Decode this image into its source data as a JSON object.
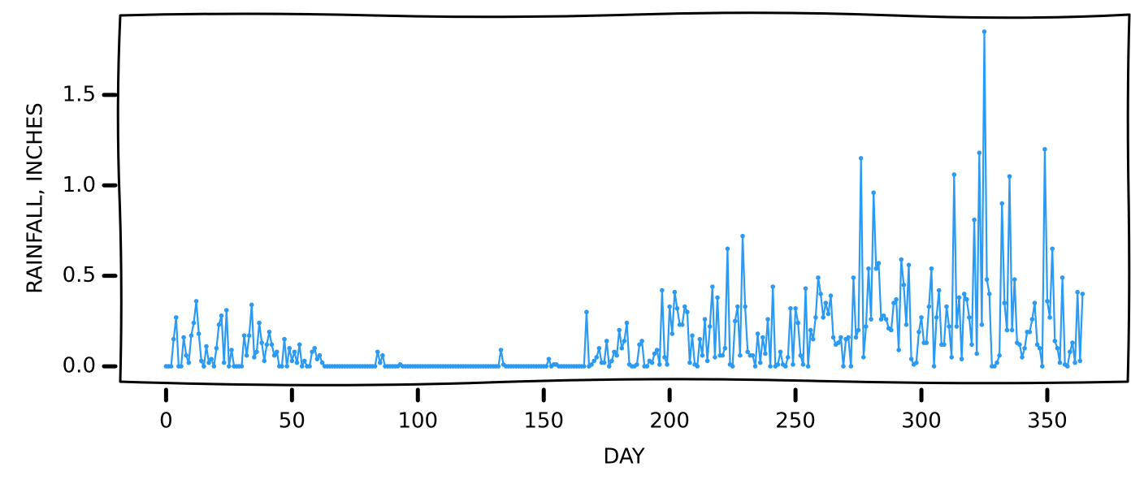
{
  "chart_data": {
    "type": "line",
    "xlabel": "DAY",
    "ylabel": "RAINFALL, INCHES",
    "color": "#2b9af3",
    "xlim": [
      -18.2,
      382.6
    ],
    "ylim": [
      -0.085,
      1.944
    ],
    "xticks": [
      0,
      50,
      100,
      150,
      200,
      250,
      300,
      350
    ],
    "yticks": [
      {
        "value": 0,
        "label": "0.0"
      },
      0.5,
      {
        "value": 1,
        "label": "1.0"
      },
      1.5
    ],
    "x": [
      0,
      1,
      2,
      3,
      4,
      5,
      6,
      7,
      8,
      9,
      10,
      11,
      12,
      13,
      14,
      15,
      16,
      17,
      18,
      19,
      20,
      21,
      22,
      23,
      24,
      25,
      26,
      27,
      28,
      29,
      30,
      31,
      32,
      33,
      34,
      35,
      36,
      37,
      38,
      39,
      40,
      41,
      42,
      43,
      44,
      45,
      46,
      47,
      48,
      49,
      50,
      51,
      52,
      53,
      54,
      55,
      56,
      57,
      58,
      59,
      60,
      61,
      62,
      63,
      64,
      65,
      66,
      67,
      68,
      69,
      70,
      71,
      72,
      73,
      74,
      75,
      76,
      77,
      78,
      79,
      80,
      81,
      82,
      83,
      84,
      85,
      86,
      87,
      88,
      89,
      90,
      91,
      92,
      93,
      94,
      95,
      96,
      97,
      98,
      99,
      100,
      101,
      102,
      103,
      104,
      105,
      106,
      107,
      108,
      109,
      110,
      111,
      112,
      113,
      114,
      115,
      116,
      117,
      118,
      119,
      120,
      121,
      122,
      123,
      124,
      125,
      126,
      127,
      128,
      129,
      130,
      131,
      132,
      133,
      134,
      135,
      136,
      137,
      138,
      139,
      140,
      141,
      142,
      143,
      144,
      145,
      146,
      147,
      148,
      149,
      150,
      151,
      152,
      153,
      154,
      155,
      156,
      157,
      158,
      159,
      160,
      161,
      162,
      163,
      164,
      165,
      166,
      167,
      168,
      169,
      170,
      171,
      172,
      173,
      174,
      175,
      176,
      177,
      178,
      179,
      180,
      181,
      182,
      183,
      184,
      185,
      186,
      187,
      188,
      189,
      190,
      191,
      192,
      193,
      194,
      195,
      196,
      197,
      198,
      199,
      200,
      201,
      202,
      203,
      204,
      205,
      206,
      207,
      208,
      209,
      210,
      211,
      212,
      213,
      214,
      215,
      216,
      217,
      218,
      219,
      220,
      221,
      222,
      223,
      224,
      225,
      226,
      227,
      228,
      229,
      230,
      231,
      232,
      233,
      234,
      235,
      236,
      237,
      238,
      239,
      240,
      241,
      242,
      243,
      244,
      245,
      246,
      247,
      248,
      249,
      250,
      251,
      252,
      253,
      254,
      255,
      256,
      257,
      258,
      259,
      260,
      261,
      262,
      263,
      264,
      265,
      266,
      267,
      268,
      269,
      270,
      271,
      272,
      273,
      274,
      275,
      276,
      277,
      278,
      279,
      280,
      281,
      282,
      283,
      284,
      285,
      286,
      287,
      288,
      289,
      290,
      291,
      292,
      293,
      294,
      295,
      296,
      297,
      298,
      299,
      300,
      301,
      302,
      303,
      304,
      305,
      306,
      307,
      308,
      309,
      310,
      311,
      312,
      313,
      314,
      315,
      316,
      317,
      318,
      319,
      320,
      321,
      322,
      323,
      324,
      325,
      326,
      327,
      328,
      329,
      330,
      331,
      332,
      333,
      334,
      335,
      336,
      337,
      338,
      339,
      340,
      341,
      342,
      343,
      344,
      345,
      346,
      347,
      348,
      349,
      350,
      351,
      352,
      353,
      354,
      355,
      356,
      357,
      358,
      359,
      360,
      361,
      362,
      363,
      364
    ],
    "values": [
      0,
      0,
      0,
      0.15,
      0.27,
      0,
      0,
      0.16,
      0.06,
      0.02,
      0.17,
      0.24,
      0.36,
      0.18,
      0.03,
      0,
      0.11,
      0.02,
      0.04,
      0,
      0.1,
      0.23,
      0.28,
      0.02,
      0.31,
      0,
      0.09,
      0,
      0,
      0,
      0,
      0.17,
      0.06,
      0.17,
      0.34,
      0.05,
      0.08,
      0.24,
      0.13,
      0.03,
      0.12,
      0.19,
      0.12,
      0.06,
      0.08,
      0,
      0,
      0.15,
      0,
      0.1,
      0.03,
      0.08,
      0.02,
      0.12,
      0,
      0.03,
      0,
      0,
      0.08,
      0.1,
      0.04,
      0.06,
      0.02,
      0,
      0,
      0,
      0,
      0,
      0,
      0,
      0,
      0,
      0,
      0,
      0,
      0,
      0,
      0,
      0,
      0,
      0,
      0,
      0,
      0,
      0.08,
      0.02,
      0.06,
      0,
      0,
      0,
      0,
      0,
      0,
      0.01,
      0,
      0,
      0,
      0,
      0,
      0,
      0,
      0,
      0,
      0,
      0,
      0,
      0,
      0,
      0,
      0,
      0,
      0,
      0,
      0,
      0,
      0,
      0,
      0,
      0,
      0,
      0,
      0,
      0,
      0,
      0,
      0,
      0,
      0,
      0,
      0,
      0,
      0,
      0,
      0.09,
      0.01,
      0,
      0,
      0,
      0,
      0,
      0,
      0,
      0,
      0,
      0,
      0,
      0,
      0,
      0,
      0,
      0,
      0,
      0.04,
      0,
      0.01,
      0.01,
      0,
      0,
      0,
      0,
      0,
      0,
      0,
      0,
      0,
      0,
      0,
      0.3,
      0,
      0.01,
      0.03,
      0.05,
      0.1,
      0.02,
      0.02,
      0.14,
      0,
      0.03,
      0.08,
      0.06,
      0.2,
      0.1,
      0.14,
      0.24,
      0.01,
      0,
      0,
      0.01,
      0.12,
      0.14,
      0,
      0,
      0.03,
      0.02,
      0.07,
      0.09,
      0.01,
      0.42,
      0.05,
      0.01,
      0.33,
      0.18,
      0.41,
      0.32,
      0.23,
      0.23,
      0.33,
      0.3,
      0.02,
      0.17,
      0.01,
      0,
      0.15,
      0.06,
      0.26,
      0.03,
      0.22,
      0.44,
      0.05,
      0.38,
      0.06,
      0.06,
      0.1,
      0.65,
      0.01,
      0,
      0.25,
      0.33,
      0.06,
      0.72,
      0.33,
      0.08,
      0.06,
      0.06,
      0,
      0.18,
      0.02,
      0.16,
      0.07,
      0.26,
      0,
      0.44,
      0,
      0.01,
      0.08,
      0.01,
      0,
      0.05,
      0.32,
      0.01,
      0.32,
      0.24,
      0.06,
      0.01,
      0.43,
      0,
      0.2,
      0.15,
      0.27,
      0.49,
      0.4,
      0.27,
      0.35,
      0.29,
      0.39,
      0.16,
      0.12,
      0.13,
      0.16,
      0,
      0.15,
      0.16,
      0,
      0.49,
      0.16,
      0.2,
      1.15,
      0.05,
      0.22,
      0.54,
      0.26,
      0.96,
      0.54,
      0.57,
      0.26,
      0.28,
      0.26,
      0.21,
      0.2,
      0.35,
      0.37,
      0.09,
      0.59,
      0.45,
      0.23,
      0.56,
      0.04,
      0.01,
      0.02,
      0.19,
      0.27,
      0.13,
      0.13,
      0.33,
      0.54,
      0,
      0.27,
      0.42,
      0.12,
      0.12,
      0.33,
      0.22,
      0.05,
      1.06,
      0.22,
      0.38,
      0.04,
      0.4,
      0.37,
      0.27,
      0.12,
      0.81,
      0.07,
      1.18,
      0.23,
      1.85,
      0.48,
      0.4,
      0,
      0,
      0.02,
      0.06,
      0.9,
      0.35,
      0.2,
      1.05,
      0.2,
      0.48,
      0.13,
      0.12,
      0.05,
      0.1,
      0.19,
      0.19,
      0.26,
      0.35,
      0.12,
      0.1,
      0,
      1.2,
      0.36,
      0.27,
      0.65,
      0.14,
      0.1,
      0.02,
      0.49,
      0.01,
      0,
      0.08,
      0.13,
      0.02,
      0.41,
      0.03,
      0.4
    ]
  }
}
